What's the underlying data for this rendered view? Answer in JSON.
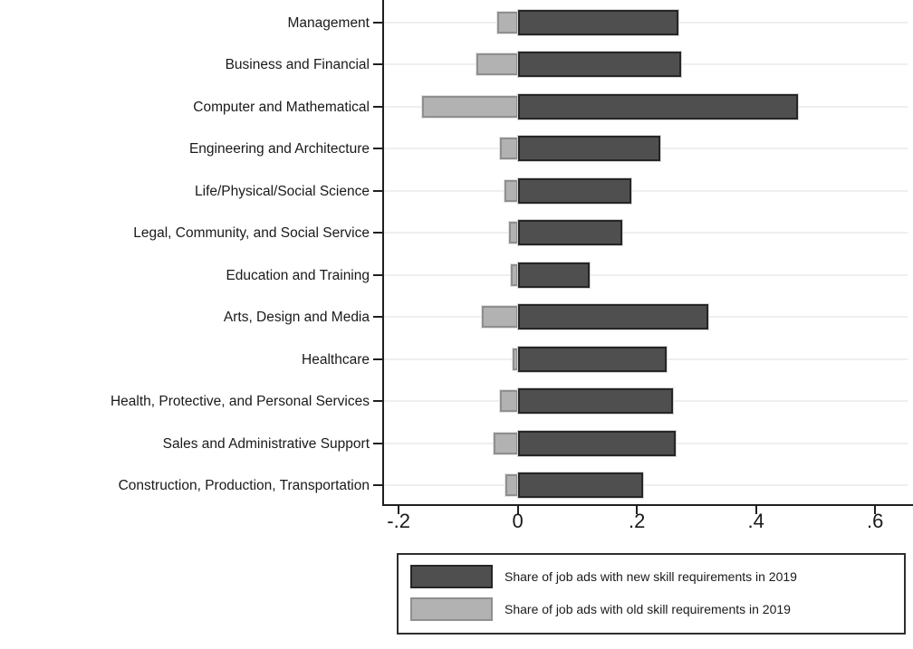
{
  "chart_data": {
    "type": "bar",
    "orientation": "horizontal",
    "title": "",
    "xlabel": "",
    "ylabel": "",
    "categories": [
      "Management",
      "Business and Financial",
      "Computer and Mathematical",
      "Engineering and Architecture",
      "Life/Physical/Social Science",
      "Legal, Community, and Social Service",
      "Education and Training",
      "Arts, Design and Media",
      "Healthcare",
      "Health, Protective, and Personal Services",
      "Sales and Administrative Support",
      "Construction, Production, Transportation"
    ],
    "series": [
      {
        "name": "Share of job ads with new skill requirements in 2019",
        "color": "#4f4f4f",
        "border_color": "#262626",
        "values": [
          0.27,
          0.275,
          0.47,
          0.24,
          0.19,
          0.175,
          0.12,
          0.32,
          0.25,
          0.26,
          0.265,
          0.21
        ]
      },
      {
        "name": "Share of job ads with old skill requirements in 2019",
        "color": "#b2b2b2",
        "border_color": "#8f8f8f",
        "values": [
          -0.035,
          -0.07,
          -0.16,
          -0.03,
          -0.022,
          -0.014,
          -0.011,
          -0.06,
          -0.008,
          -0.03,
          -0.04,
          -0.02
        ]
      }
    ],
    "xlim": [
      -0.226,
      0.659
    ],
    "x_ticks": {
      "values": [
        -0.2,
        0,
        0.2,
        0.4,
        0.6
      ],
      "labels": [
        "-.2",
        "0",
        ".2",
        ".4",
        ".6"
      ]
    },
    "grid": true,
    "legend_position": "bottom-right"
  },
  "colors": {
    "background": "#ffffff",
    "axis": "#1f1f1f",
    "grid_line": "#efefef",
    "text": "#1a1a1a",
    "new_fill": "#4f4f4f",
    "new_border": "#262626",
    "old_fill": "#b2b2b2",
    "old_border": "#8f8f8f",
    "legend_border": "#2e2e2e"
  }
}
